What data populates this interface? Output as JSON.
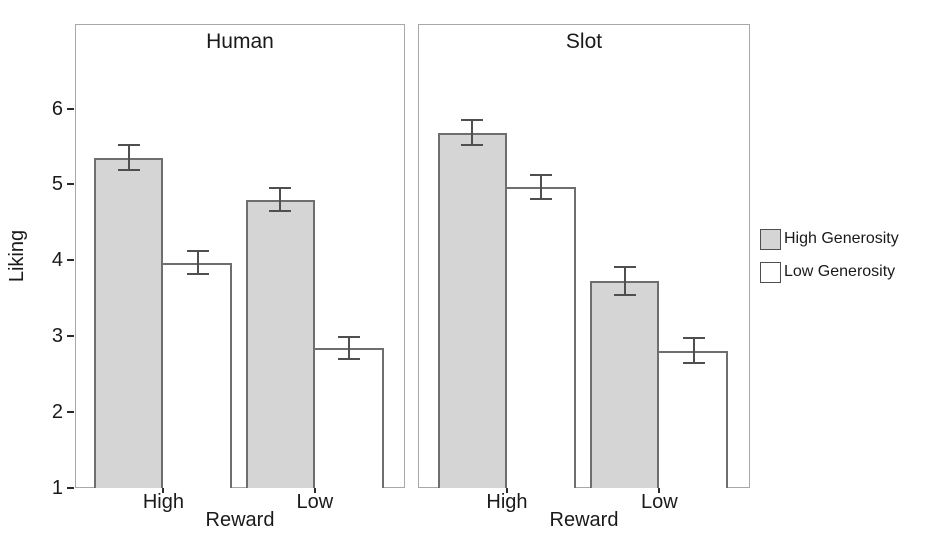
{
  "chart_data": {
    "type": "bar",
    "title": "",
    "ylabel": "Liking",
    "xlabel": "Reward",
    "ylim": [
      1,
      6
    ],
    "yticks": [
      1,
      2,
      3,
      4,
      5,
      6
    ],
    "categories": [
      "High",
      "Low"
    ],
    "legend": {
      "position": "right",
      "entries": [
        {
          "label": "High Generosity",
          "fill": "#d5d5d5"
        },
        {
          "label": "Low Generosity",
          "fill": "#ffffff"
        }
      ]
    },
    "panels": [
      {
        "title": "Human",
        "series": [
          {
            "name": "High Generosity",
            "values": [
              5.35,
              4.8
            ],
            "errors": [
              0.18,
              0.17
            ]
          },
          {
            "name": "Low Generosity",
            "values": [
              3.97,
              2.84
            ],
            "errors": [
              0.17,
              0.16
            ]
          }
        ]
      },
      {
        "title": "Slot",
        "series": [
          {
            "name": "High Generosity",
            "values": [
              5.68,
              3.73
            ],
            "errors": [
              0.18,
              0.2
            ]
          },
          {
            "name": "Low Generosity",
            "values": [
              4.97,
              2.81
            ],
            "errors": [
              0.17,
              0.18
            ]
          }
        ]
      }
    ],
    "colors": {
      "bar_fill_high_generosity": "#d5d5d5",
      "bar_fill_low_generosity": "#ffffff",
      "bar_border": "#6e6e6e",
      "error_bar": "#4f4f4f",
      "panel_border": "#a8a8a8",
      "tick": "#2a2a2a",
      "text": "#1a1a1a",
      "background": "#ffffff"
    }
  }
}
